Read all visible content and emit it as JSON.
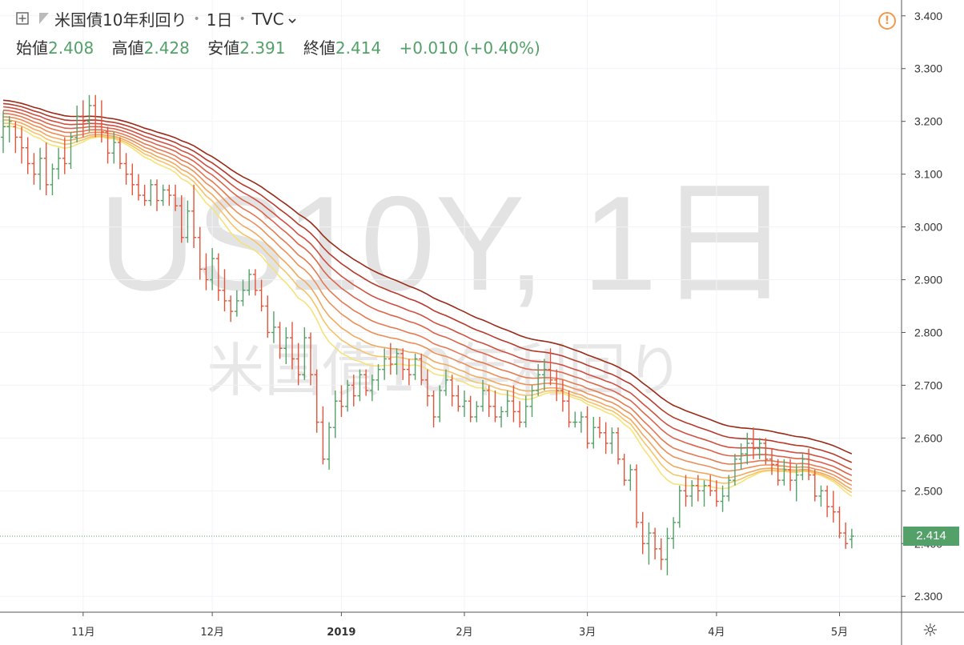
{
  "header": {
    "symbol_name": "米国債10年利回り",
    "interval": "1日",
    "exchange": "TVC",
    "open_label": "始値",
    "open": "2.408",
    "high_label": "高値",
    "high": "2.428",
    "low_label": "安値",
    "low": "2.391",
    "close_label": "終値",
    "close": "2.414",
    "change": "+0.010 (+0.40%)"
  },
  "watermark": {
    "main": "US10Y, 1日",
    "sub": "米国債10年利回り"
  },
  "price_tag": "2.414",
  "colors": {
    "up": "#53a168",
    "down": "#e0553a",
    "alert": "#f2994a",
    "ribbon": [
      "#f6e27a",
      "#f5c36a",
      "#f0a95e",
      "#eb9058",
      "#e47a51",
      "#db644a",
      "#cf5040",
      "#b63a2b",
      "#9a2a18"
    ]
  },
  "icons": {
    "expand": "square-plus-icon",
    "flag": "flag-icon",
    "chevron": "chevron-down-icon",
    "alert": "alert-circle-icon",
    "settings": "gear-icon"
  },
  "chart_data": {
    "type": "ohlc",
    "ylim": [
      2.27,
      3.43
    ],
    "y_ticks": [
      "3.400",
      "3.300",
      "3.200",
      "3.100",
      "3.000",
      "2.900",
      "2.800",
      "2.700",
      "2.600",
      "2.500",
      "2.400",
      "2.300"
    ],
    "x_labels": [
      "11月",
      "12月",
      "2019",
      "2月",
      "3月",
      "4月",
      "5月"
    ],
    "x_label_bars": [
      13,
      34,
      55,
      75,
      95,
      116,
      136
    ],
    "last_price_line": 2.414,
    "bars": [
      [
        3.17,
        3.22,
        3.14,
        3.19
      ],
      [
        3.19,
        3.21,
        3.16,
        3.2
      ],
      [
        3.19,
        3.2,
        3.14,
        3.17
      ],
      [
        3.17,
        3.19,
        3.12,
        3.15
      ],
      [
        3.15,
        3.17,
        3.1,
        3.12
      ],
      [
        3.12,
        3.14,
        3.08,
        3.1
      ],
      [
        3.1,
        3.15,
        3.07,
        3.13
      ],
      [
        3.13,
        3.16,
        3.06,
        3.08
      ],
      [
        3.08,
        3.12,
        3.06,
        3.11
      ],
      [
        3.11,
        3.15,
        3.09,
        3.13
      ],
      [
        3.13,
        3.17,
        3.1,
        3.12
      ],
      [
        3.12,
        3.18,
        3.11,
        3.17
      ],
      [
        3.17,
        3.23,
        3.16,
        3.21
      ],
      [
        3.21,
        3.24,
        3.17,
        3.2
      ],
      [
        3.2,
        3.25,
        3.18,
        3.23
      ],
      [
        3.23,
        3.25,
        3.17,
        3.19
      ],
      [
        3.19,
        3.24,
        3.16,
        3.18
      ],
      [
        3.18,
        3.19,
        3.12,
        3.14
      ],
      [
        3.14,
        3.18,
        3.12,
        3.16
      ],
      [
        3.16,
        3.17,
        3.11,
        3.12
      ],
      [
        3.12,
        3.14,
        3.08,
        3.1
      ],
      [
        3.1,
        3.12,
        3.06,
        3.08
      ],
      [
        3.08,
        3.1,
        3.05,
        3.06
      ],
      [
        3.06,
        3.08,
        3.04,
        3.05
      ],
      [
        3.05,
        3.09,
        3.04,
        3.08
      ],
      [
        3.08,
        3.09,
        3.03,
        3.05
      ],
      [
        3.05,
        3.08,
        3.04,
        3.07
      ],
      [
        3.07,
        3.08,
        3.04,
        3.06
      ],
      [
        3.06,
        3.08,
        3.03,
        3.04
      ],
      [
        3.04,
        3.06,
        2.97,
        2.98
      ],
      [
        2.98,
        3.05,
        2.97,
        3.03
      ],
      [
        3.03,
        3.08,
        2.96,
        2.98
      ],
      [
        2.98,
        3.0,
        2.9,
        2.92
      ],
      [
        2.92,
        2.95,
        2.88,
        2.9
      ],
      [
        2.9,
        2.96,
        2.88,
        2.94
      ],
      [
        2.94,
        2.95,
        2.86,
        2.88
      ],
      [
        2.88,
        2.92,
        2.84,
        2.86
      ],
      [
        2.86,
        2.87,
        2.82,
        2.84
      ],
      [
        2.84,
        2.88,
        2.83,
        2.86
      ],
      [
        2.86,
        2.9,
        2.85,
        2.88
      ],
      [
        2.88,
        2.92,
        2.87,
        2.91
      ],
      [
        2.91,
        2.92,
        2.87,
        2.88
      ],
      [
        2.88,
        2.9,
        2.84,
        2.85
      ],
      [
        2.85,
        2.87,
        2.79,
        2.8
      ],
      [
        2.8,
        2.84,
        2.78,
        2.81
      ],
      [
        2.81,
        2.82,
        2.75,
        2.77
      ],
      [
        2.77,
        2.81,
        2.74,
        2.79
      ],
      [
        2.79,
        2.82,
        2.73,
        2.75
      ],
      [
        2.75,
        2.78,
        2.7,
        2.72
      ],
      [
        2.72,
        2.81,
        2.71,
        2.79
      ],
      [
        2.79,
        2.8,
        2.7,
        2.72
      ],
      [
        2.72,
        2.73,
        2.61,
        2.63
      ],
      [
        2.63,
        2.66,
        2.55,
        2.56
      ],
      [
        2.56,
        2.63,
        2.54,
        2.62
      ],
      [
        2.62,
        2.69,
        2.6,
        2.67
      ],
      [
        2.67,
        2.7,
        2.64,
        2.66
      ],
      [
        2.66,
        2.71,
        2.65,
        2.7
      ],
      [
        2.7,
        2.72,
        2.66,
        2.68
      ],
      [
        2.68,
        2.73,
        2.67,
        2.72
      ],
      [
        2.72,
        2.73,
        2.68,
        2.69
      ],
      [
        2.69,
        2.72,
        2.67,
        2.71
      ],
      [
        2.71,
        2.74,
        2.69,
        2.73
      ],
      [
        2.73,
        2.77,
        2.71,
        2.75
      ],
      [
        2.75,
        2.78,
        2.72,
        2.74
      ],
      [
        2.74,
        2.77,
        2.72,
        2.76
      ],
      [
        2.76,
        2.77,
        2.71,
        2.73
      ],
      [
        2.73,
        2.75,
        2.7,
        2.72
      ],
      [
        2.72,
        2.76,
        2.71,
        2.75
      ],
      [
        2.75,
        2.76,
        2.7,
        2.71
      ],
      [
        2.71,
        2.73,
        2.66,
        2.68
      ],
      [
        2.68,
        2.69,
        2.62,
        2.64
      ],
      [
        2.64,
        2.7,
        2.63,
        2.69
      ],
      [
        2.69,
        2.73,
        2.68,
        2.71
      ],
      [
        2.71,
        2.72,
        2.66,
        2.68
      ],
      [
        2.68,
        2.7,
        2.65,
        2.66
      ],
      [
        2.66,
        2.69,
        2.64,
        2.67
      ],
      [
        2.67,
        2.68,
        2.63,
        2.64
      ],
      [
        2.64,
        2.67,
        2.63,
        2.66
      ],
      [
        2.66,
        2.71,
        2.65,
        2.69
      ],
      [
        2.69,
        2.7,
        2.64,
        2.66
      ],
      [
        2.66,
        2.69,
        2.63,
        2.64
      ],
      [
        2.64,
        2.66,
        2.62,
        2.65
      ],
      [
        2.65,
        2.69,
        2.64,
        2.67
      ],
      [
        2.67,
        2.7,
        2.63,
        2.65
      ],
      [
        2.65,
        2.67,
        2.62,
        2.63
      ],
      [
        2.63,
        2.68,
        2.62,
        2.66
      ],
      [
        2.66,
        2.7,
        2.64,
        2.69
      ],
      [
        2.69,
        2.74,
        2.68,
        2.72
      ],
      [
        2.72,
        2.75,
        2.69,
        2.73
      ],
      [
        2.73,
        2.77,
        2.7,
        2.71
      ],
      [
        2.71,
        2.73,
        2.67,
        2.69
      ],
      [
        2.69,
        2.71,
        2.65,
        2.67
      ],
      [
        2.67,
        2.69,
        2.62,
        2.63
      ],
      [
        2.63,
        2.65,
        2.62,
        2.63
      ],
      [
        2.63,
        2.65,
        2.61,
        2.64
      ],
      [
        2.64,
        2.66,
        2.58,
        2.59
      ],
      [
        2.59,
        2.64,
        2.58,
        2.62
      ],
      [
        2.62,
        2.64,
        2.6,
        2.61
      ],
      [
        2.61,
        2.63,
        2.57,
        2.59
      ],
      [
        2.59,
        2.62,
        2.57,
        2.61
      ],
      [
        2.61,
        2.62,
        2.55,
        2.56
      ],
      [
        2.56,
        2.57,
        2.51,
        2.52
      ],
      [
        2.52,
        2.55,
        2.5,
        2.54
      ],
      [
        2.54,
        2.55,
        2.43,
        2.44
      ],
      [
        2.44,
        2.46,
        2.38,
        2.4
      ],
      [
        2.4,
        2.44,
        2.36,
        2.42
      ],
      [
        2.42,
        2.43,
        2.37,
        2.39
      ],
      [
        2.39,
        2.41,
        2.35,
        2.37
      ],
      [
        2.37,
        2.43,
        2.34,
        2.41
      ],
      [
        2.41,
        2.45,
        2.39,
        2.44
      ],
      [
        2.44,
        2.51,
        2.43,
        2.5
      ],
      [
        2.5,
        2.53,
        2.47,
        2.49
      ],
      [
        2.49,
        2.52,
        2.47,
        2.51
      ],
      [
        2.51,
        2.53,
        2.48,
        2.5
      ],
      [
        2.5,
        2.52,
        2.47,
        2.51
      ],
      [
        2.51,
        2.53,
        2.49,
        2.5
      ],
      [
        2.5,
        2.52,
        2.47,
        2.48
      ],
      [
        2.48,
        2.51,
        2.46,
        2.49
      ],
      [
        2.49,
        2.53,
        2.48,
        2.52
      ],
      [
        2.52,
        2.57,
        2.51,
        2.56
      ],
      [
        2.56,
        2.59,
        2.54,
        2.57
      ],
      [
        2.57,
        2.61,
        2.55,
        2.59
      ],
      [
        2.59,
        2.62,
        2.56,
        2.58
      ],
      [
        2.58,
        2.6,
        2.56,
        2.59
      ],
      [
        2.59,
        2.6,
        2.55,
        2.56
      ],
      [
        2.56,
        2.58,
        2.53,
        2.55
      ],
      [
        2.55,
        2.56,
        2.51,
        2.52
      ],
      [
        2.52,
        2.56,
        2.51,
        2.54
      ],
      [
        2.54,
        2.56,
        2.5,
        2.52
      ],
      [
        2.52,
        2.55,
        2.48,
        2.53
      ],
      [
        2.53,
        2.57,
        2.52,
        2.56
      ],
      [
        2.56,
        2.58,
        2.52,
        2.53
      ],
      [
        2.53,
        2.54,
        2.48,
        2.49
      ],
      [
        2.49,
        2.51,
        2.47,
        2.5
      ],
      [
        2.5,
        2.51,
        2.45,
        2.47
      ],
      [
        2.47,
        2.5,
        2.44,
        2.46
      ],
      [
        2.46,
        2.47,
        2.41,
        2.42
      ],
      [
        2.42,
        2.44,
        2.39,
        2.4
      ],
      [
        2.408,
        2.428,
        2.391,
        2.414
      ]
    ],
    "ribbon_periods": [
      20,
      24,
      28,
      33,
      38,
      44,
      50,
      57,
      65
    ]
  }
}
